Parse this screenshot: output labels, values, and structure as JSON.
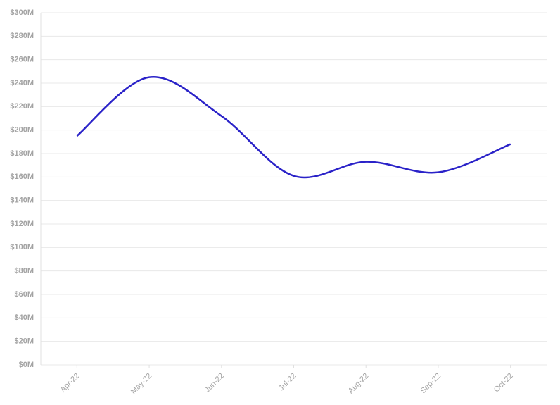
{
  "chart_data": {
    "type": "line",
    "categories": [
      "Apr-22",
      "May-22",
      "Jun-22",
      "Jul-22",
      "Aug-22",
      "Sep-22",
      "Oct-22"
    ],
    "series": [
      {
        "color": "#2a22c8",
        "values": [
          195000000,
          245000000,
          212000000,
          161000000,
          173000000,
          164000000,
          188000000
        ]
      }
    ],
    "ylim": [
      0,
      300000000
    ],
    "yticks": [
      {
        "value": 0,
        "label": "$0M"
      },
      {
        "value": 20000000,
        "label": "$20M"
      },
      {
        "value": 40000000,
        "label": "$40M"
      },
      {
        "value": 60000000,
        "label": "$60M"
      },
      {
        "value": 80000000,
        "label": "$80M"
      },
      {
        "value": 100000000,
        "label": "$100M"
      },
      {
        "value": 120000000,
        "label": "$120M"
      },
      {
        "value": 140000000,
        "label": "$140M"
      },
      {
        "value": 160000000,
        "label": "$160M"
      },
      {
        "value": 180000000,
        "label": "$180M"
      },
      {
        "value": 200000000,
        "label": "$200M"
      },
      {
        "value": 220000000,
        "label": "$220M"
      },
      {
        "value": 240000000,
        "label": "$240M"
      },
      {
        "value": 260000000,
        "label": "$260M"
      },
      {
        "value": 280000000,
        "label": "$280M"
      },
      {
        "value": 300000000,
        "label": "$300M"
      }
    ],
    "grid": true
  }
}
